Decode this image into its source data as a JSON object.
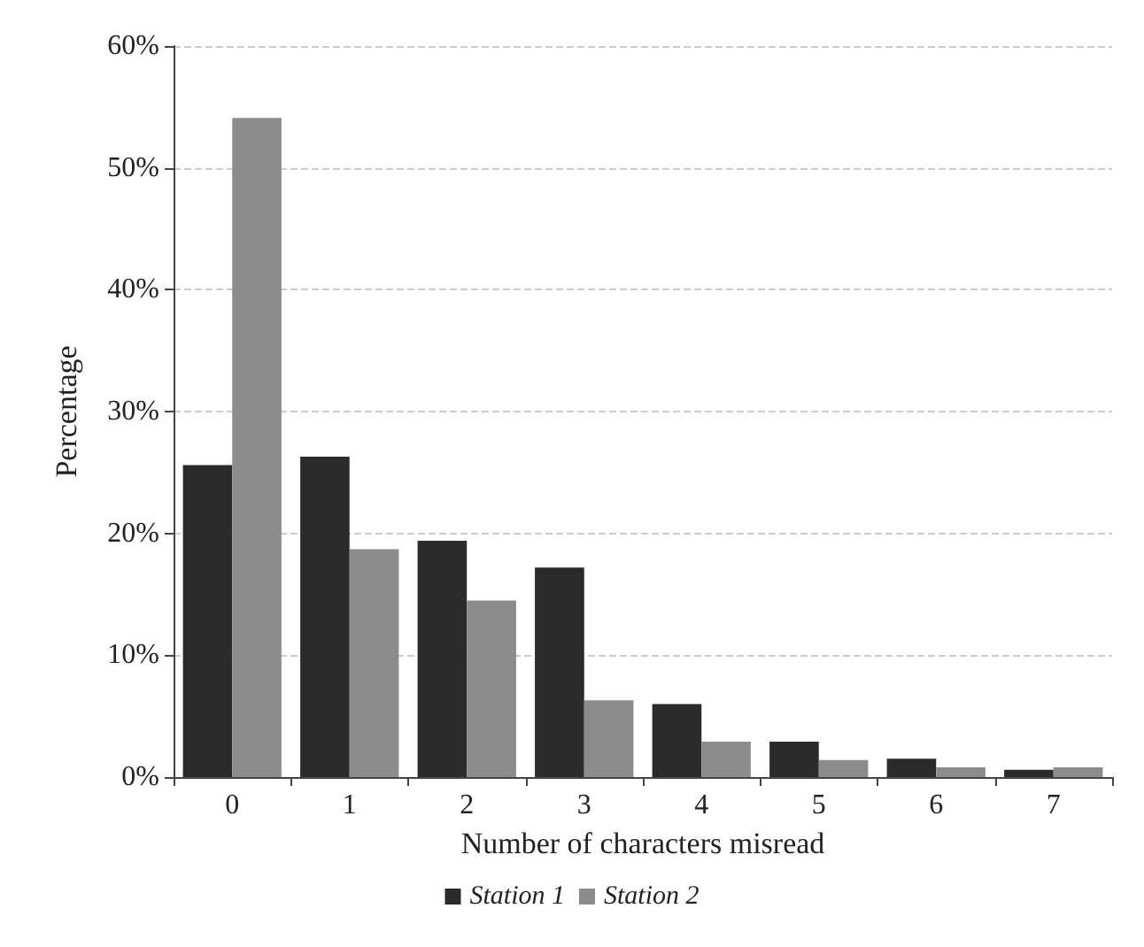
{
  "chart_data": {
    "type": "bar",
    "xlabel": "Number of characters misread",
    "ylabel": "Percentage",
    "categories": [
      "0",
      "1",
      "2",
      "3",
      "4",
      "5",
      "6",
      "7"
    ],
    "series": [
      {
        "name": "Station 1",
        "color": "#2b2b2b",
        "values": [
          25.6,
          26.3,
          19.4,
          17.2,
          6.0,
          2.9,
          1.5,
          0.6
        ]
      },
      {
        "name": "Station 2",
        "color": "#8c8c8c",
        "values": [
          54.1,
          18.7,
          14.5,
          6.3,
          2.9,
          1.4,
          0.8,
          0.8
        ]
      }
    ],
    "ylim": [
      0,
      60
    ],
    "yticks": [
      {
        "value": 0,
        "label": "0%"
      },
      {
        "value": 10,
        "label": "10%"
      },
      {
        "value": 20,
        "label": "20%"
      },
      {
        "value": 30,
        "label": "30%"
      },
      {
        "value": 40,
        "label": "40%"
      },
      {
        "value": 50,
        "label": "50%"
      },
      {
        "value": 60,
        "label": "60%"
      }
    ],
    "grid": "y",
    "legend": "bottom"
  }
}
